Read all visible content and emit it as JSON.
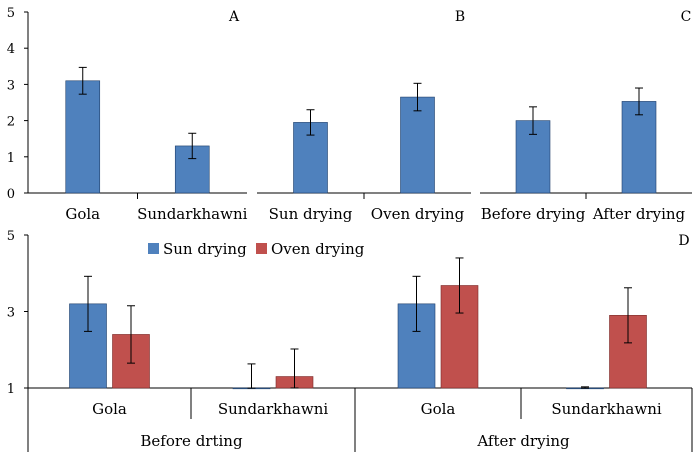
{
  "colors": {
    "sun": "#4f81bd",
    "oven": "#c0504d",
    "edge": "#1f3f6a",
    "axis": "#000000"
  },
  "chart_data": [
    {
      "type": "bar",
      "panel_label": "A",
      "categories": [
        "Gola",
        "Sundarkhawni"
      ],
      "values": [
        3.1,
        1.3
      ],
      "errors": [
        0.37,
        0.35
      ],
      "ylim": [
        0,
        5
      ],
      "yticks": [
        "0",
        "1",
        "2",
        "3",
        "4",
        "5"
      ],
      "grid": false
    },
    {
      "type": "bar",
      "panel_label": "B",
      "categories": [
        "Sun drying",
        "Oven drying"
      ],
      "values": [
        1.95,
        2.65
      ],
      "errors": [
        0.35,
        0.38
      ],
      "ylim": [
        0,
        5
      ],
      "grid": false
    },
    {
      "type": "bar",
      "panel_label": "C",
      "categories": [
        "Before drying",
        "After drying"
      ],
      "values": [
        2.0,
        2.53
      ],
      "errors": [
        0.38,
        0.37
      ],
      "ylim": [
        0,
        5
      ],
      "grid": false
    },
    {
      "type": "bar",
      "panel_label": "D",
      "groups": [
        "Before drting",
        "After drying"
      ],
      "categories": [
        "Gola",
        "Sundarkhawni",
        "Gola",
        "Sundarkhawni"
      ],
      "series": [
        {
          "name": "Sun drying",
          "color": "#4f81bd",
          "values": [
            3.2,
            1.0,
            3.2,
            1.0
          ],
          "errors": [
            0.72,
            0.63,
            0.72,
            0.03
          ]
        },
        {
          "name": "Oven drying",
          "color": "#c0504d",
          "values": [
            2.4,
            1.3,
            3.68,
            2.9
          ],
          "errors": [
            0.75,
            0.72,
            0.72,
            0.72
          ]
        }
      ],
      "ylim": [
        1,
        5
      ],
      "yticks": [
        "1",
        "3",
        "5"
      ],
      "legend_position": "top-left",
      "grid": false
    }
  ]
}
